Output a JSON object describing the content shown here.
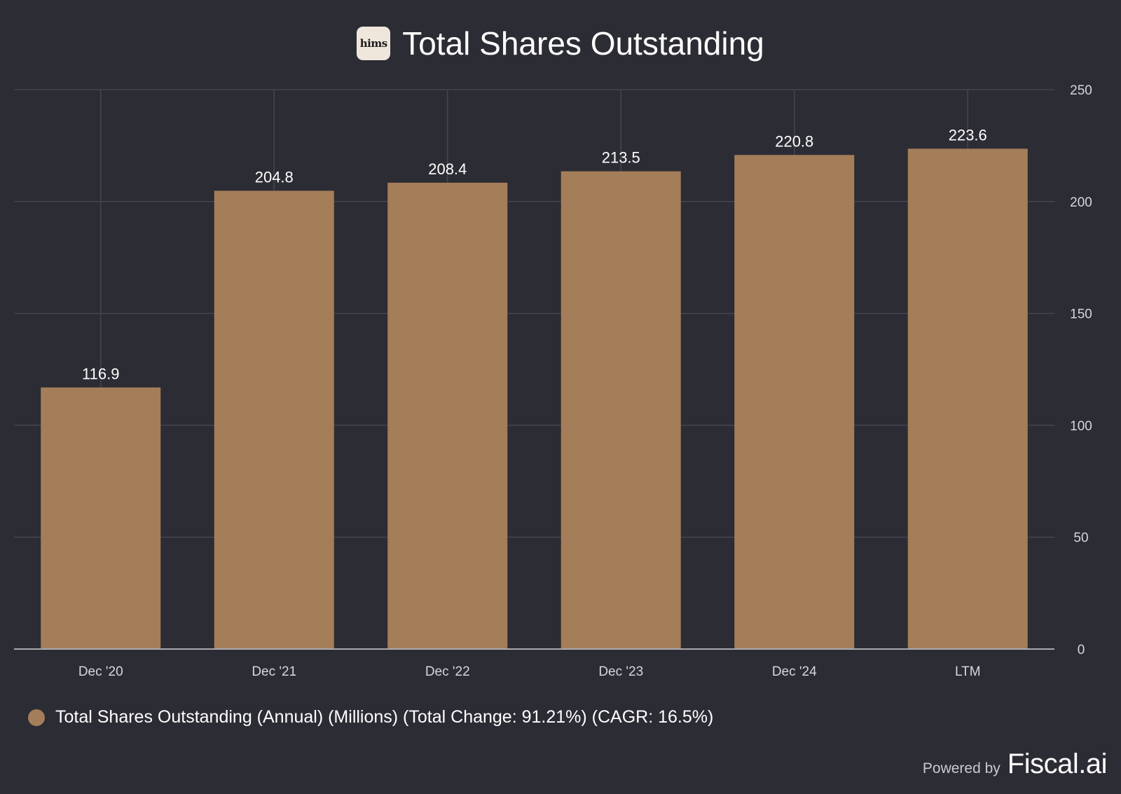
{
  "header": {
    "logo_text": "hims",
    "title": "Total Shares Outstanding"
  },
  "colors": {
    "background": "#2c2c34",
    "bar": "#a47e59",
    "grid": "#45454e",
    "axis": "#a9a9b1",
    "tick_text": "#d6d6dc",
    "label_text": "#ffffff"
  },
  "chart_data": {
    "type": "bar",
    "categories": [
      "Dec '20",
      "Dec '21",
      "Dec '22",
      "Dec '23",
      "Dec '24",
      "LTM"
    ],
    "series": [
      {
        "name": "Total Shares Outstanding (Annual) (Millions) (Total Change: 91.21%) (CAGR: 16.5%)",
        "values": [
          116.9,
          204.8,
          208.4,
          213.5,
          220.8,
          223.6
        ]
      }
    ],
    "data_labels": [
      "116.9",
      "204.8",
      "208.4",
      "213.5",
      "220.8",
      "223.6"
    ],
    "y_ticks": [
      0,
      50,
      100,
      150,
      200,
      250
    ],
    "ylim": [
      0,
      250
    ],
    "y_axis_side": "right",
    "grid": true,
    "legend_position": "bottom-left"
  },
  "legend": {
    "text": "Total Shares Outstanding (Annual) (Millions) (Total Change: 91.21%) (CAGR: 16.5%)"
  },
  "footer": {
    "powered_by": "Powered by",
    "brand": "Fiscal.ai"
  }
}
